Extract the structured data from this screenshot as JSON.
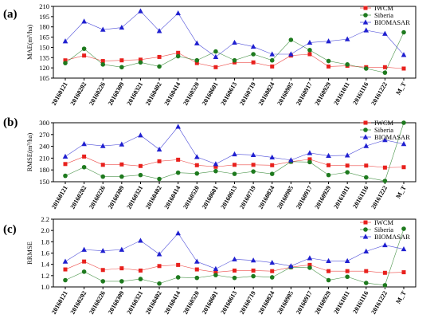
{
  "chart_data": [
    {
      "type": "line",
      "panel_label": "(a)",
      "ylabel": "MAE(m³/ha)",
      "ylim": [
        105,
        210
      ],
      "yticks": [
        105,
        120,
        135,
        150,
        165,
        180,
        195,
        210
      ],
      "categories": [
        "20160121",
        "20160202",
        "20160226",
        "20160309",
        "20160321",
        "20160402",
        "20160414",
        "20160520",
        "20160601",
        "20160613",
        "20160719",
        "20160824",
        "20160905",
        "20160917",
        "20160929",
        "20161011",
        "20161116",
        "20161222",
        "M_T"
      ],
      "legend_position": "top-right",
      "series": [
        {
          "name": "IWCM",
          "color": "#e8211d",
          "marker": "square",
          "values": [
            131,
            138,
            130,
            131,
            132,
            136,
            142,
            127,
            121,
            128,
            128,
            122,
            138,
            140,
            122,
            123,
            121,
            121,
            119
          ]
        },
        {
          "name": "Siberia",
          "color": "#1e7a1e",
          "marker": "circle",
          "values": [
            127,
            148,
            125,
            121,
            128,
            122,
            137,
            131,
            144,
            131,
            140,
            131,
            161,
            146,
            130,
            125,
            119,
            113,
            172
          ]
        },
        {
          "name": "BIOMASAR",
          "color": "#2020d0",
          "marker": "triangle",
          "values": [
            159,
            188,
            176,
            179,
            203,
            174,
            200,
            156,
            136,
            157,
            151,
            140,
            140,
            157,
            159,
            162,
            175,
            170,
            139
          ]
        }
      ]
    },
    {
      "type": "line",
      "panel_label": "(b)",
      "ylabel": "RMSE(m³/ha)",
      "ylim": [
        150,
        300
      ],
      "yticks": [
        150,
        180,
        210,
        240,
        270,
        300
      ],
      "categories": [
        "20160121",
        "20160202",
        "20160226",
        "20160309",
        "20160321",
        "20160402",
        "20160414",
        "20160520",
        "20160601",
        "20160613",
        "20160719",
        "20160824",
        "20160905",
        "20160917",
        "20160929",
        "20161011",
        "20161116",
        "20161222",
        "M_T"
      ],
      "legend_position": "top-right",
      "series": [
        {
          "name": "IWCM",
          "color": "#e8211d",
          "marker": "square",
          "values": [
            195,
            214,
            193,
            194,
            190,
            202,
            206,
            192,
            188,
            193,
            193,
            192,
            201,
            207,
            192,
            191,
            191,
            186,
            187
          ]
        },
        {
          "name": "Siberia",
          "color": "#1e7a1e",
          "marker": "circle",
          "values": [
            165,
            187,
            163,
            163,
            167,
            157,
            173,
            171,
            177,
            170,
            176,
            170,
            201,
            200,
            167,
            174,
            161,
            152,
            300
          ]
        },
        {
          "name": "BIOMASAR",
          "color": "#2020d0",
          "marker": "triangle",
          "values": [
            214,
            246,
            241,
            245,
            268,
            232,
            290,
            213,
            195,
            220,
            218,
            212,
            205,
            223,
            216,
            217,
            241,
            256,
            246
          ]
        }
      ]
    },
    {
      "type": "line",
      "panel_label": "(c)",
      "ylabel": "RRMSE",
      "ylim": [
        1.0,
        2.2
      ],
      "yticks": [
        1.0,
        1.2,
        1.4,
        1.6,
        1.8,
        2.0,
        2.2
      ],
      "categories": [
        "20160121",
        "20160202",
        "20160226",
        "20160309",
        "20160321",
        "20160402",
        "20160414",
        "20160520",
        "20160601",
        "20160613",
        "20160719",
        "20160824",
        "20160905",
        "20160917",
        "20160929",
        "20161011",
        "20161116",
        "20161222",
        "M_T"
      ],
      "legend_position": "top-right",
      "series": [
        {
          "name": "IWCM",
          "color": "#e8211d",
          "marker": "square",
          "values": [
            1.31,
            1.45,
            1.3,
            1.33,
            1.29,
            1.37,
            1.39,
            1.31,
            1.26,
            1.29,
            1.29,
            1.28,
            1.35,
            1.39,
            1.28,
            1.28,
            1.28,
            1.25,
            1.26
          ]
        },
        {
          "name": "Siberia",
          "color": "#1e7a1e",
          "marker": "circle",
          "values": [
            1.12,
            1.27,
            1.1,
            1.1,
            1.14,
            1.06,
            1.17,
            1.16,
            1.21,
            1.16,
            1.19,
            1.17,
            1.35,
            1.34,
            1.12,
            1.18,
            1.07,
            1.03,
            2.03
          ]
        },
        {
          "name": "BIOMASAR",
          "color": "#2020d0",
          "marker": "triangle",
          "values": [
            1.45,
            1.66,
            1.64,
            1.66,
            1.82,
            1.58,
            1.95,
            1.45,
            1.32,
            1.49,
            1.47,
            1.43,
            1.37,
            1.51,
            1.46,
            1.46,
            1.63,
            1.74,
            1.67
          ]
        }
      ]
    }
  ]
}
